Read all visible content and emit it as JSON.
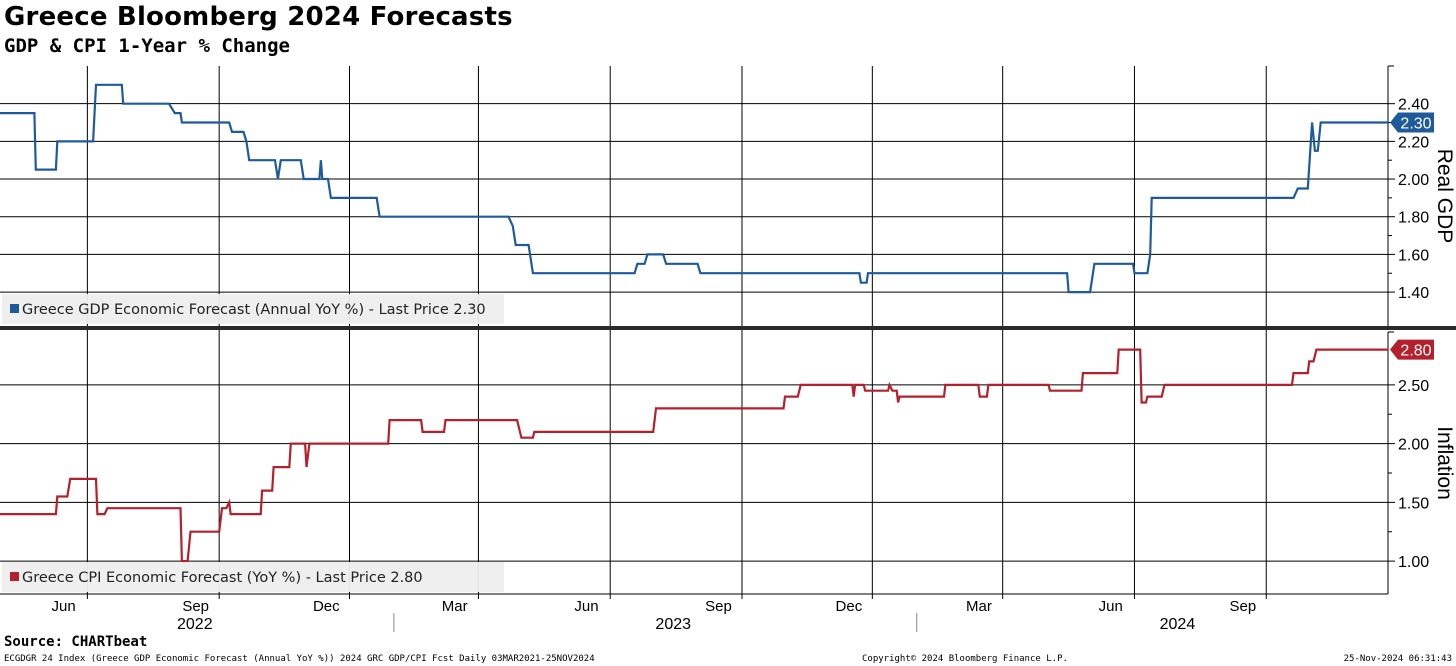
{
  "header": {
    "title": "Greece Bloomberg 2024 Forecasts",
    "subtitle": "GDP & CPI 1-Year % Change"
  },
  "footer": {
    "source": "Source: CHARTbeat",
    "left": "ECGDGR 24 Index (Greece GDP Economic Forecast (Annual YoY %)) 2024 GRC GDP/CPI Fcst  Daily 03MAR2021-25NOV2024",
    "copyright": "Copyright© 2024 Bloomberg Finance L.P.",
    "timestamp": "25-Nov-2024 06:31:43"
  },
  "chart_data": {
    "type": "line",
    "x_axis": {
      "range": [
        "2022-04-01",
        "2024-11-25"
      ],
      "month_ticks": [
        {
          "label": "Jun",
          "date": "2022-06-01"
        },
        {
          "label": "Sep",
          "date": "2022-09-01"
        },
        {
          "label": "Dec",
          "date": "2022-12-01"
        },
        {
          "label": "Mar",
          "date": "2023-03-01"
        },
        {
          "label": "Jun",
          "date": "2023-06-01"
        },
        {
          "label": "Sep",
          "date": "2023-09-01"
        },
        {
          "label": "Dec",
          "date": "2023-12-01"
        },
        {
          "label": "Mar",
          "date": "2024-03-01"
        },
        {
          "label": "Jun",
          "date": "2024-06-01"
        },
        {
          "label": "Sep",
          "date": "2024-09-01"
        }
      ],
      "year_labels": [
        {
          "label": "2022",
          "date": "2022-08-15"
        },
        {
          "label": "2023",
          "date": "2023-07-15"
        },
        {
          "label": "2024",
          "date": "2024-07-01"
        }
      ],
      "year_separators": [
        "2023-01-01",
        "2024-01-01"
      ]
    },
    "panels": [
      {
        "id": "gdp",
        "ylabel": "Real GDP",
        "ylim": [
          1.22,
          2.6
        ],
        "ticks": [
          1.4,
          1.6,
          1.8,
          2.0,
          2.2,
          2.4
        ],
        "tick_labels": [
          "1.40",
          "1.60",
          "1.80",
          "2.00",
          "2.20",
          "2.40"
        ],
        "grid": true,
        "legend_position": "bottom-left",
        "series": [
          {
            "name": "Greece GDP Economic Forecast (Annual YoY %) - Last Price 2.30",
            "color": "#1f5b9a",
            "last_value": 2.3,
            "last_label": "2.30",
            "points": [
              [
                "2022-04-01",
                2.35
              ],
              [
                "2022-04-25",
                2.35
              ],
              [
                "2022-04-26",
                2.05
              ],
              [
                "2022-05-10",
                2.05
              ],
              [
                "2022-05-11",
                2.2
              ],
              [
                "2022-06-05",
                2.2
              ],
              [
                "2022-06-07",
                2.5
              ],
              [
                "2022-06-25",
                2.5
              ],
              [
                "2022-06-26",
                2.4
              ],
              [
                "2022-07-28",
                2.4
              ],
              [
                "2022-08-01",
                2.35
              ],
              [
                "2022-08-05",
                2.35
              ],
              [
                "2022-08-06",
                2.3
              ],
              [
                "2022-09-08",
                2.3
              ],
              [
                "2022-09-10",
                2.25
              ],
              [
                "2022-09-18",
                2.25
              ],
              [
                "2022-09-20",
                2.2
              ],
              [
                "2022-09-22",
                2.1
              ],
              [
                "2022-10-10",
                2.1
              ],
              [
                "2022-10-12",
                2.0
              ],
              [
                "2022-10-14",
                2.1
              ],
              [
                "2022-10-28",
                2.1
              ],
              [
                "2022-10-30",
                2.0
              ],
              [
                "2022-11-10",
                2.0
              ],
              [
                "2022-11-11",
                2.1
              ],
              [
                "2022-11-12",
                2.0
              ],
              [
                "2022-11-16",
                2.0
              ],
              [
                "2022-11-18",
                1.9
              ],
              [
                "2022-12-20",
                1.9
              ],
              [
                "2022-12-22",
                1.8
              ],
              [
                "2023-03-22",
                1.8
              ],
              [
                "2023-03-25",
                1.75
              ],
              [
                "2023-03-27",
                1.65
              ],
              [
                "2023-04-05",
                1.65
              ],
              [
                "2023-04-08",
                1.5
              ],
              [
                "2023-06-18",
                1.5
              ],
              [
                "2023-06-20",
                1.55
              ],
              [
                "2023-06-25",
                1.55
              ],
              [
                "2023-06-27",
                1.6
              ],
              [
                "2023-07-08",
                1.6
              ],
              [
                "2023-07-10",
                1.55
              ],
              [
                "2023-08-01",
                1.55
              ],
              [
                "2023-08-03",
                1.5
              ],
              [
                "2023-11-22",
                1.5
              ],
              [
                "2023-11-23",
                1.45
              ],
              [
                "2023-11-27",
                1.45
              ],
              [
                "2023-11-28",
                1.5
              ],
              [
                "2024-04-15",
                1.5
              ],
              [
                "2024-04-16",
                1.4
              ],
              [
                "2024-05-01",
                1.4
              ],
              [
                "2024-05-04",
                1.55
              ],
              [
                "2024-05-31",
                1.55
              ],
              [
                "2024-06-01",
                1.5
              ],
              [
                "2024-06-10",
                1.5
              ],
              [
                "2024-06-12",
                1.6
              ],
              [
                "2024-06-13",
                1.9
              ],
              [
                "2024-09-20",
                1.9
              ],
              [
                "2024-09-23",
                1.95
              ],
              [
                "2024-09-30",
                1.95
              ],
              [
                "2024-10-03",
                2.3
              ],
              [
                "2024-10-05",
                2.15
              ],
              [
                "2024-10-07",
                2.15
              ],
              [
                "2024-10-09",
                2.3
              ],
              [
                "2024-11-25",
                2.3
              ]
            ]
          }
        ]
      },
      {
        "id": "cpi",
        "ylabel": "Inflation",
        "ylim": [
          0.72,
          2.95
        ],
        "ticks": [
          1.0,
          1.5,
          2.0,
          2.5
        ],
        "tick_labels": [
          "1.00",
          "1.50",
          "2.00",
          "2.50"
        ],
        "grid": true,
        "legend_position": "bottom-left",
        "series": [
          {
            "name": "Greece CPI Economic Forecast (YoY %) - Last Price 2.80",
            "color": "#b4202c",
            "last_value": 2.8,
            "last_label": "2.80",
            "points": [
              [
                "2022-04-01",
                1.4
              ],
              [
                "2022-05-10",
                1.4
              ],
              [
                "2022-05-11",
                1.55
              ],
              [
                "2022-05-18",
                1.55
              ],
              [
                "2022-05-20",
                1.7
              ],
              [
                "2022-06-07",
                1.7
              ],
              [
                "2022-06-08",
                1.4
              ],
              [
                "2022-06-13",
                1.4
              ],
              [
                "2022-06-15",
                1.45
              ],
              [
                "2022-08-05",
                1.45
              ],
              [
                "2022-08-06",
                1.0
              ],
              [
                "2022-08-10",
                1.0
              ],
              [
                "2022-08-12",
                1.25
              ],
              [
                "2022-09-01",
                1.25
              ],
              [
                "2022-09-03",
                1.45
              ],
              [
                "2022-09-06",
                1.45
              ],
              [
                "2022-09-08",
                1.5
              ],
              [
                "2022-09-09",
                1.4
              ],
              [
                "2022-09-20",
                1.4
              ],
              [
                "2022-09-30",
                1.4
              ],
              [
                "2022-10-01",
                1.6
              ],
              [
                "2022-10-08",
                1.6
              ],
              [
                "2022-10-09",
                1.8
              ],
              [
                "2022-10-20",
                1.8
              ],
              [
                "2022-10-21",
                2.0
              ],
              [
                "2022-10-31",
                2.0
              ],
              [
                "2022-11-01",
                1.8
              ],
              [
                "2022-11-03",
                2.0
              ],
              [
                "2022-12-28",
                2.0
              ],
              [
                "2022-12-29",
                2.2
              ],
              [
                "2023-01-20",
                2.2
              ],
              [
                "2023-01-21",
                2.1
              ],
              [
                "2023-02-05",
                2.1
              ],
              [
                "2023-02-06",
                2.2
              ],
              [
                "2023-03-28",
                2.2
              ],
              [
                "2023-03-31",
                2.05
              ],
              [
                "2023-04-08",
                2.05
              ],
              [
                "2023-04-09",
                2.1
              ],
              [
                "2023-07-01",
                2.1
              ],
              [
                "2023-07-03",
                2.3
              ],
              [
                "2023-09-30",
                2.3
              ],
              [
                "2023-10-01",
                2.4
              ],
              [
                "2023-10-10",
                2.4
              ],
              [
                "2023-10-12",
                2.5
              ],
              [
                "2023-11-17",
                2.5
              ],
              [
                "2023-11-18",
                2.4
              ],
              [
                "2023-11-19",
                2.5
              ],
              [
                "2023-11-25",
                2.5
              ],
              [
                "2023-11-26",
                2.45
              ],
              [
                "2023-12-12",
                2.45
              ],
              [
                "2023-12-13",
                2.5
              ],
              [
                "2023-12-15",
                2.45
              ],
              [
                "2023-12-18",
                2.45
              ],
              [
                "2023-12-19",
                2.35
              ],
              [
                "2023-12-20",
                2.4
              ],
              [
                "2024-01-20",
                2.4
              ],
              [
                "2024-01-21",
                2.5
              ],
              [
                "2024-02-13",
                2.5
              ],
              [
                "2024-02-14",
                2.4
              ],
              [
                "2024-02-19",
                2.4
              ],
              [
                "2024-02-20",
                2.5
              ],
              [
                "2024-04-02",
                2.5
              ],
              [
                "2024-04-03",
                2.45
              ],
              [
                "2024-04-25",
                2.45
              ],
              [
                "2024-04-26",
                2.6
              ],
              [
                "2024-05-20",
                2.6
              ],
              [
                "2024-05-21",
                2.8
              ],
              [
                "2024-06-05",
                2.8
              ],
              [
                "2024-06-06",
                2.35
              ],
              [
                "2024-06-09",
                2.35
              ],
              [
                "2024-06-10",
                2.4
              ],
              [
                "2024-06-20",
                2.4
              ],
              [
                "2024-06-22",
                2.5
              ],
              [
                "2024-09-19",
                2.5
              ],
              [
                "2024-09-20",
                2.6
              ],
              [
                "2024-09-30",
                2.6
              ],
              [
                "2024-10-01",
                2.7
              ],
              [
                "2024-10-04",
                2.7
              ],
              [
                "2024-10-06",
                2.8
              ],
              [
                "2024-11-25",
                2.8
              ]
            ]
          }
        ]
      }
    ]
  }
}
